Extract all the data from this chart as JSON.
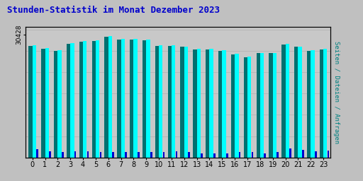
{
  "title": "Stunden-Statistik im Monat Dezember 2023",
  "title_color": "#0000cc",
  "title_fontsize": 9,
  "ylabel_right": "Seiten / Dateien / Anfragen",
  "ylabel_right_color": "#008080",
  "ytick_label": "30428",
  "outer_bg": "#c0c0c0",
  "inner_bg": "#c0c0c0",
  "plot_bg": "#c8c8c8",
  "border_color": "#000000",
  "hours": [
    0,
    1,
    2,
    3,
    4,
    5,
    6,
    7,
    8,
    9,
    10,
    11,
    12,
    13,
    14,
    15,
    16,
    17,
    18,
    19,
    20,
    21,
    22,
    23
  ],
  "cyan_vals": [
    0.88,
    0.855,
    0.84,
    0.895,
    0.91,
    0.915,
    0.95,
    0.93,
    0.93,
    0.92,
    0.88,
    0.88,
    0.87,
    0.85,
    0.85,
    0.84,
    0.81,
    0.79,
    0.82,
    0.82,
    0.89,
    0.87,
    0.84,
    0.85
  ],
  "teal_vals": [
    0.875,
    0.85,
    0.835,
    0.89,
    0.905,
    0.91,
    0.945,
    0.925,
    0.925,
    0.915,
    0.875,
    0.875,
    0.865,
    0.845,
    0.845,
    0.835,
    0.805,
    0.785,
    0.815,
    0.815,
    0.885,
    0.865,
    0.835,
    0.845
  ],
  "blue_vals": [
    0.065,
    0.05,
    0.045,
    0.05,
    0.05,
    0.042,
    0.042,
    0.042,
    0.042,
    0.042,
    0.042,
    0.05,
    0.042,
    0.032,
    0.032,
    0.032,
    0.042,
    0.042,
    0.032,
    0.042,
    0.072,
    0.06,
    0.05,
    0.052
  ],
  "cyan_color": "#00ffff",
  "teal_color": "#007070",
  "blue_color": "#0000cc",
  "bar_width": 0.3
}
